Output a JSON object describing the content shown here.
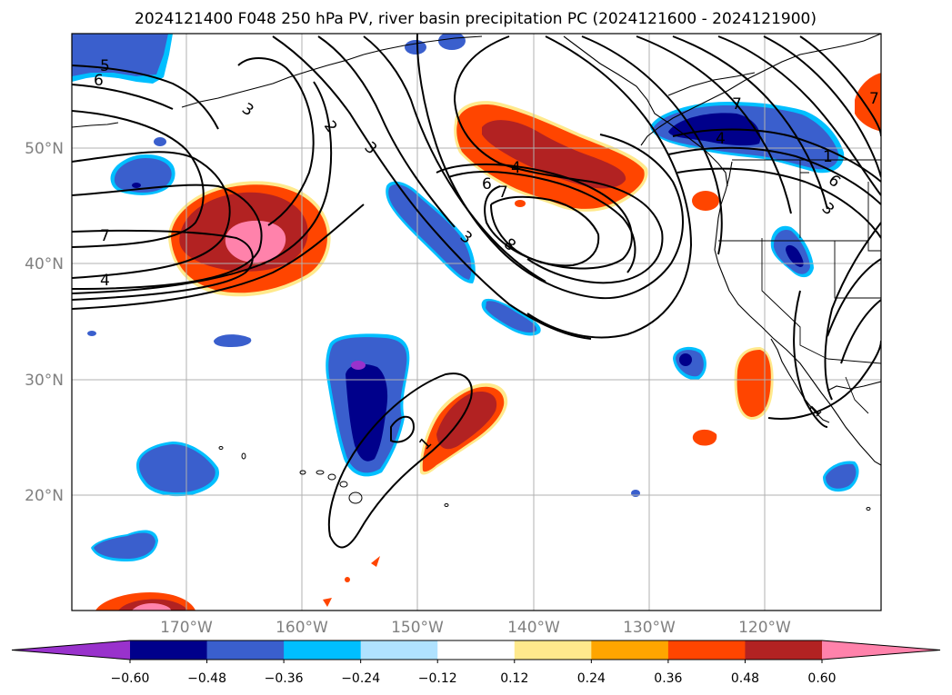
{
  "title": "2024121400 F048 250 hPa PV, river basin precipitation PC (2024121600 - 2024121900)",
  "lon_labels": [
    "170°W",
    "160°W",
    "150°W",
    "140°W",
    "130°W",
    "120°W"
  ],
  "lat_labels": [
    "50°N",
    "40°N",
    "30°N",
    "20°N"
  ],
  "colorbar": {
    "colors": [
      "#9932cc",
      "#00008b",
      "#3a5fcd",
      "#00bfff",
      "#b0e2ff",
      "#ffffff",
      "#ffe98c",
      "#ffa500",
      "#ff4500",
      "#b22222",
      "#ff82ab"
    ],
    "tick_labels": [
      "−0.60",
      "−0.48",
      "−0.36",
      "−0.24",
      "−0.12",
      "0.12",
      "0.24",
      "0.36",
      "0.48",
      "0.60"
    ]
  },
  "contour_labels": [
    {
      "name": "pv-label-5-nw",
      "text": "5"
    },
    {
      "name": "pv-label-6-nw",
      "text": "6"
    },
    {
      "name": "pv-label-3-north",
      "text": "3"
    },
    {
      "name": "pv-label-2-north",
      "text": "2"
    },
    {
      "name": "pv-label-3-center",
      "text": "3"
    },
    {
      "name": "pv-label-7-west",
      "text": "7"
    },
    {
      "name": "pv-label-4-west",
      "text": "4"
    },
    {
      "name": "pv-label-3-trough",
      "text": "3"
    },
    {
      "name": "pv-label-4-ridge",
      "text": "4"
    },
    {
      "name": "pv-label-6-ridge",
      "text": "6"
    },
    {
      "name": "pv-label-7-ridge",
      "text": "7"
    },
    {
      "name": "pv-label-8-ridge",
      "text": "8"
    },
    {
      "name": "pv-label-7-ne",
      "text": "7"
    },
    {
      "name": "pv-label-4-ne",
      "text": "4"
    },
    {
      "name": "pv-label-1-east",
      "text": "1"
    },
    {
      "name": "pv-label-6-east",
      "text": "6"
    },
    {
      "name": "pv-label-3-east",
      "text": "3"
    },
    {
      "name": "pv-label-1-south",
      "text": "1"
    },
    {
      "name": "pv-label-1-subtropic",
      "text": "1"
    },
    {
      "name": "pv-label-7-edge",
      "text": "7"
    }
  ]
}
